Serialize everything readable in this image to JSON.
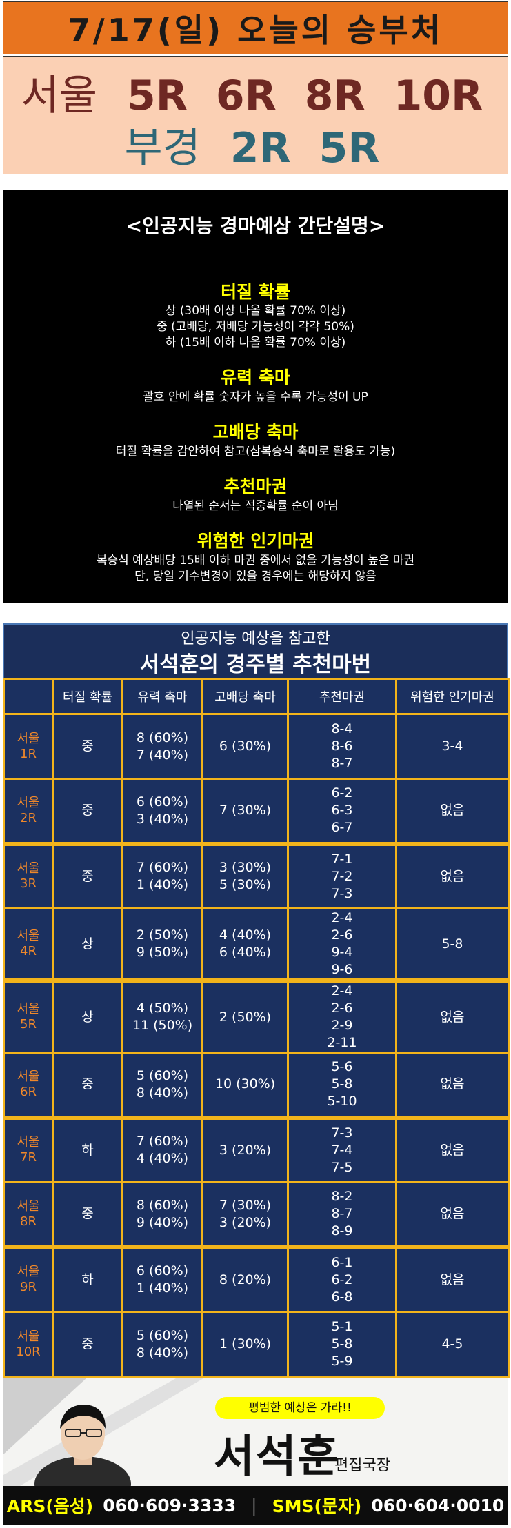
{
  "header": {
    "date_title": "7/17(일) 오늘의 승부처",
    "line1_label": "서울",
    "line1_races": [
      "5R",
      "6R",
      "8R",
      "10R"
    ],
    "line2_label": "부경",
    "line2_races": [
      "2R",
      "5R"
    ]
  },
  "info": {
    "title": "<인공지능 경마예상 간단설명>",
    "sections": [
      {
        "heading": "터질 확률",
        "lines": [
          "상 (30배 이상 나올 확률 70% 이상)",
          "중 (고배당, 저배당 가능성이 각각 50%)",
          "하 (15배 이하 나올 확률 70% 이상)"
        ]
      },
      {
        "heading": "유력 축마",
        "lines": [
          "괄호 안에 확률 숫자가 높을 수록 가능성이 UP"
        ]
      },
      {
        "heading": "고배당 축마",
        "lines": [
          "터질 확률을 감안하여 참고(삼복승식 축마로 활용도 가능)"
        ]
      },
      {
        "heading": "추천마권",
        "lines": [
          "나열된 순서는 적중확률 순이 아님"
        ]
      },
      {
        "heading": "위험한 인기마권",
        "lines": [
          "복승식 예상배당 15배 이하 마권 중에서 없을 가능성이 높은 마권",
          "단, 당일 기수변경이 있을 경우에는 해당하지 않음"
        ]
      }
    ]
  },
  "table": {
    "subtitle": "인공지능 예상을 참고한",
    "title": "서석훈의 경주별 추천마번",
    "headers": [
      "",
      "터질 확률",
      "유력 축마",
      "고배당 축마",
      "추천마권",
      "위험한 인기마권"
    ],
    "rows": [
      {
        "race": [
          "서울",
          "1R"
        ],
        "prob": "중",
        "strong": [
          "8 (60%)",
          "7 (40%)"
        ],
        "high": [
          "6 (30%)"
        ],
        "rec": [
          "8-4",
          "8-6",
          "8-7"
        ],
        "danger": "3-4"
      },
      {
        "race": [
          "서울",
          "2R"
        ],
        "prob": "중",
        "strong": [
          "6 (60%)",
          "3 (40%)"
        ],
        "high": [
          "7 (30%)"
        ],
        "rec": [
          "6-2",
          "6-3",
          "6-7"
        ],
        "danger": "없음"
      },
      {
        "race": [
          "서울",
          "3R"
        ],
        "prob": "중",
        "strong": [
          "7 (60%)",
          "1 (40%)"
        ],
        "high": [
          "3 (30%)",
          "5 (30%)"
        ],
        "rec": [
          "7-1",
          "7-2",
          "7-3"
        ],
        "danger": "없음"
      },
      {
        "race": [
          "서울",
          "4R"
        ],
        "prob": "상",
        "strong": [
          "2 (50%)",
          "9 (50%)"
        ],
        "high": [
          "4 (40%)",
          "6 (40%)"
        ],
        "rec": [
          "2-4",
          "2-6",
          "9-4",
          "9-6"
        ],
        "danger": "5-8"
      },
      {
        "race": [
          "서울",
          "5R"
        ],
        "prob": "상",
        "strong": [
          "4 (50%)",
          "11 (50%)"
        ],
        "high": [
          "2 (50%)"
        ],
        "rec": [
          "2-4",
          "2-6",
          "2-9",
          "2-11"
        ],
        "danger": "없음"
      },
      {
        "race": [
          "서울",
          "6R"
        ],
        "prob": "중",
        "strong": [
          "5 (60%)",
          "8 (40%)"
        ],
        "high": [
          "10 (30%)"
        ],
        "rec": [
          "5-6",
          "5-8",
          "5-10"
        ],
        "danger": "없음"
      },
      {
        "race": [
          "서울",
          "7R"
        ],
        "prob": "하",
        "strong": [
          "7 (60%)",
          "4 (40%)"
        ],
        "high": [
          "3 (20%)"
        ],
        "rec": [
          "7-3",
          "7-4",
          "7-5"
        ],
        "danger": "없음"
      },
      {
        "race": [
          "서울",
          "8R"
        ],
        "prob": "중",
        "strong": [
          "8 (60%)",
          "9 (40%)"
        ],
        "high": [
          "7 (30%)",
          "3 (20%)"
        ],
        "rec": [
          "8-2",
          "8-7",
          "8-9"
        ],
        "danger": "없음"
      },
      {
        "race": [
          "서울",
          "9R"
        ],
        "prob": "하",
        "strong": [
          "6 (60%)",
          "1 (40%)"
        ],
        "high": [
          "8 (20%)"
        ],
        "rec": [
          "6-1",
          "6-2",
          "6-8"
        ],
        "danger": "없음"
      },
      {
        "race": [
          "서울",
          "10R"
        ],
        "prob": "중",
        "strong": [
          "5 (60%)",
          "8 (40%)"
        ],
        "high": [
          "1 (30%)"
        ],
        "rec": [
          "5-1",
          "5-8",
          "5-9"
        ],
        "danger": "4-5"
      }
    ]
  },
  "banner": {
    "tagline": "평범한 예상은 가라!!",
    "name": "서석훈",
    "role": "편집국장",
    "ars_label": "ARS(음성)",
    "ars_number": "060·609·3333",
    "sms_label": "SMS(문자)",
    "sms_number": "060·604·0010"
  },
  "colors": {
    "header_orange": "#e8741f",
    "header_peach": "#fbd0b4",
    "seoul_color": "#6e2823",
    "busan_color": "#2e6777",
    "info_heading": "#ffff00",
    "table_bg": "#1b2e5a",
    "table_border": "#f3b41b",
    "race_label": "#f0882a"
  }
}
